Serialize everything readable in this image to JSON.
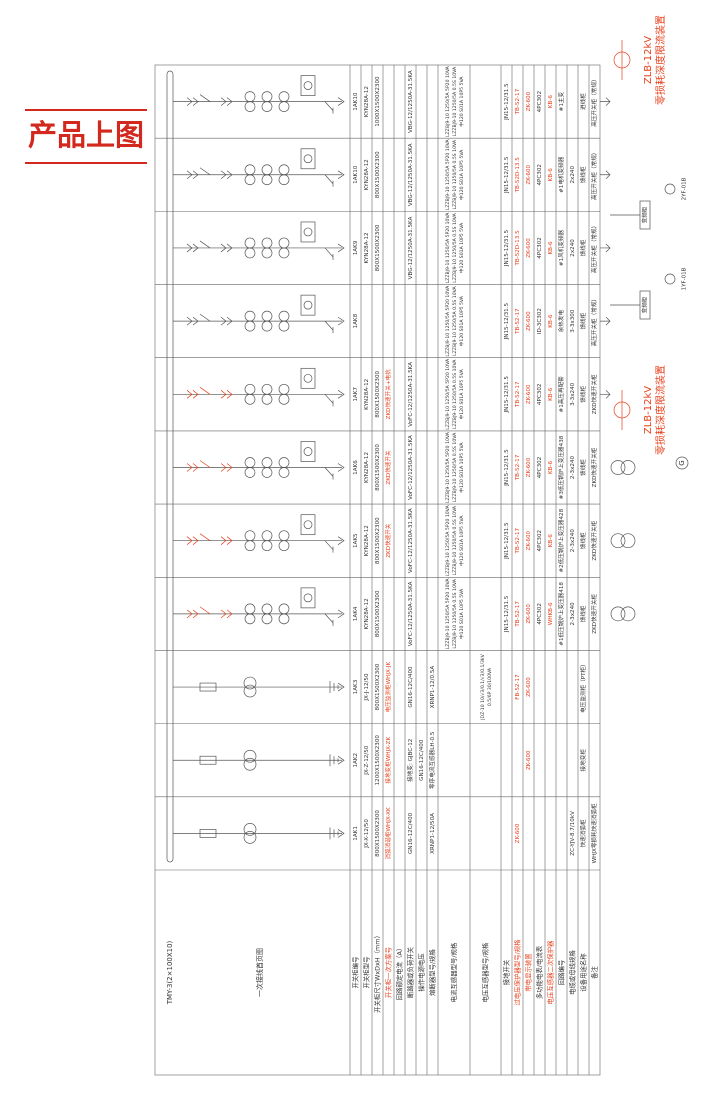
{
  "title": "产品上图",
  "bus": "TMY-3(2×100X10)",
  "schematic_label": "一次接线首页图",
  "rows": [
    {
      "label": "开关柜编号"
    },
    {
      "label": "开关柜型号"
    },
    {
      "label": "开关柜尺寸WxDxH（mm）"
    },
    {
      "label": "开关柜一次方案号",
      "color": "#e8401c"
    },
    {
      "label": "回路额定电流（A）"
    },
    {
      "label": "断路器或负荷开关"
    },
    {
      "label": "操作电源电压"
    },
    {
      "label": "熔断器型号/规格"
    },
    {
      "label": "电流互感器型号/规格"
    },
    {
      "label": "电压互感器型号/规格"
    },
    {
      "label": "接地开关"
    },
    {
      "label": "过电压保护器型号/规格",
      "color": "#e8401c"
    },
    {
      "label": "带电显示装置",
      "color": "#e8401c"
    },
    {
      "label": "多功能电表/电流表"
    },
    {
      "label": "电压互感器二次保护器",
      "color": "#e8401c"
    },
    {
      "label": "回路编号"
    },
    {
      "label": "电缆或母线规格"
    },
    {
      "label": "设备用途名称"
    },
    {
      "label": "备注"
    }
  ],
  "columns": [
    {
      "cells": [
        "1AK1",
        "JX-X-12/50",
        "800X1500X2300",
        "消弧消谐柜WHJX-XK",
        null,
        "GN16-12C/400",
        null,
        "XRNP1-12/50A",
        null,
        null,
        null,
        "ZK-600",
        null,
        null,
        null,
        null,
        "ZC-YJV-8.7/10kV",
        "快速消弧柜",
        "WHJX零损耗快速消弧柜"
      ]
    },
    {
      "cells": [
        "1AK2",
        "JX-Z-12/50",
        "1200X1500X2300",
        "接地变柜WHJX-ZK",
        null,
        "接地变: GJBC-12",
        "GN16-12C/400",
        "零序电流互感器LH-0.5",
        null,
        null,
        null,
        null,
        "ZK-600",
        null,
        null,
        null,
        null,
        "接地变柜",
        null
      ]
    },
    {
      "cells": [
        "1AK3",
        "JX-J-12/50",
        "800X1500X2300",
        "电压监测柜WHJX-JK",
        null,
        "GN16-12C/400",
        null,
        "XRNP1-12/0.5A",
        null,
        [
          "JDZ-10 10/√3/0.1/√3/0.1/3kV",
          "0.5/6P 30/100VA"
        ],
        null,
        "FB-52-17",
        "ZK-600",
        null,
        null,
        null,
        null,
        "电压监测柜（PT柜）",
        null
      ]
    },
    {
      "cells": [
        "1AK4",
        "KYN28A-12",
        "800X1500X2300",
        null,
        null,
        "VoFC-12/1250A-31.5KA",
        null,
        null,
        [
          "LZZBJ9-10 1250/5A 5P20 10VA",
          "LZZBJ9-10 1250/5A 0.5S 10VA",
          "中120 S01A 10P5 5VA"
        ],
        null,
        "JN15-12/31.5",
        "TB-52-17",
        "ZK-600",
        "4PC302",
        "WHKB-6",
        "#1低压锅炉上变压器418",
        "2-3x240",
        "馈线柜",
        "ZKD快速开关柜"
      ]
    },
    {
      "cells": [
        "1AK5",
        "KYN28A-12",
        "800X1500X2300",
        "ZKD快速开关",
        null,
        "VoFC-12/1250A-31.5KA",
        null,
        null,
        [
          "LZZBJ9-10 1250/5A 5P20 10VA",
          "LZZBJ9-10 1250/5A 0.5S 10VA",
          "中120 S01A 10P5 5VA"
        ],
        null,
        "JN15-12/31.5",
        "TB-52-17",
        "ZK-600",
        "4PC302",
        "KB-6",
        "#2低压锅炉上变压器428",
        "2-3x240",
        "馈线柜",
        "ZKD快速开关柜"
      ]
    },
    {
      "cells": [
        "1AK6",
        "KYN28A-12",
        "800X1500X2300",
        "ZKD快速开关",
        null,
        "VoFC-12/1250A-31.5KA",
        null,
        null,
        [
          "LZZBJ9-10 1250/5A 5P20 10VA",
          "LZZBJ9-10 1250/5A 0.5S 10VA",
          "中120 S01A 10P5 5VA"
        ],
        null,
        "JN15-12/31.5",
        "TB-52-17",
        "ZK-600",
        "4PC302",
        "KB-6",
        "#3低压锅炉上变压器438",
        "2-3x240",
        "馈线柜",
        "ZKD快速开关柜"
      ]
    },
    {
      "cells": [
        "1AK7",
        "KYN28A-12",
        "800X1500X2300",
        "ZKD快速开关+电抗",
        null,
        "VoFC-12/1250A-31.5KA",
        null,
        null,
        [
          "LZZBJ9-10 1250/5A 5P20 10VA",
          "LZZBJ9-10 1250/5A 0.5S 10VA",
          "中120 S01A 10P5 5VA"
        ],
        null,
        "JN15-12/31.5",
        "TB-52-17",
        "ZK-600",
        "4PC302",
        "KB-6",
        "#1高压再配套",
        "3-3x240",
        "馈线柜",
        "ZKD快速开关柜"
      ]
    },
    {
      "cells": [
        "1AK8",
        null,
        null,
        null,
        null,
        null,
        null,
        null,
        [
          "LZZBJ9-10 1250/5A 5P20 10VA",
          "LZZBJ9-10 1250/5A 0.5S 10VA",
          "中120 S01A 10P5 5VA"
        ],
        null,
        "JN15-12/31.5",
        "TB-52-17",
        "ZK-600",
        "ID-3C302",
        "KB-6",
        "余热发电",
        "3-3x300",
        "馈线柜",
        "高压开关柜（常规）"
      ]
    },
    {
      "cells": [
        "1AK9",
        "KYN28A-12",
        "800X1500X2300",
        null,
        null,
        "VBG-12/1250A-31.5KA",
        null,
        null,
        [
          "LZZBJ9-10 1250/5A 5P20 10VA",
          "LZZBJ9-10 1250/5A 0.5S 10VA",
          "中120 S01A 10P5 5VA"
        ],
        null,
        "JN15-12/31.5",
        "TB-52D-13.5",
        "ZK-600",
        "4PC302",
        "KB-6",
        "#1风机变频器",
        "2x240",
        "馈线柜",
        "高压开关柜（常规）"
      ]
    },
    {
      "cells": [
        "1AK10",
        "KYN28A-12",
        "800X1500X2300",
        null,
        null,
        "VBG-12/1250A-31.5KA",
        null,
        null,
        [
          "LZZBJ9-10 1250/5A 5P20 10VA",
          "LZZBJ9-10 1250/5A 0.5S 10VA",
          "中120 S01A 10P5 5VA"
        ],
        null,
        "JN15-12/31.5",
        "TB-52D-13.5",
        "ZK-600",
        "4PC302",
        "KB-6",
        "#1电机变频器",
        "2x240",
        "馈线柜",
        "高压开关柜（常规）"
      ]
    },
    {
      "cells": [
        "1AK10",
        "KYN28A-12",
        "1000X1500X2300",
        null,
        null,
        "VBG-12/1250A-31.5KA",
        null,
        null,
        [
          "LZZBJ9-10 1250/5A 5P20 10VA",
          "LZZBJ9-10 1250/5A 0.5S 10VA",
          "中120 S01A 10P5 5VA"
        ],
        null,
        "JN15-12/31.5",
        "TB-52-17",
        "ZK-600",
        "4PC302",
        "KB-6",
        "#1主变",
        null,
        "进线柜",
        "高压开关柜（常规）"
      ]
    }
  ],
  "annotations": [
    {
      "lines": [
        "ZLB-12kV",
        "零损耗深度限流装置"
      ],
      "color": "#e8401c"
    },
    {
      "lines": [
        "ZLB-12kV",
        "零损耗深度限流装置"
      ],
      "color": "#e8401c"
    }
  ],
  "vfd": [
    {
      "box": "变频柜",
      "model": "1YF-01B"
    },
    {
      "box": "变频柜",
      "model": "2YF-01B"
    }
  ],
  "generator": "G"
}
